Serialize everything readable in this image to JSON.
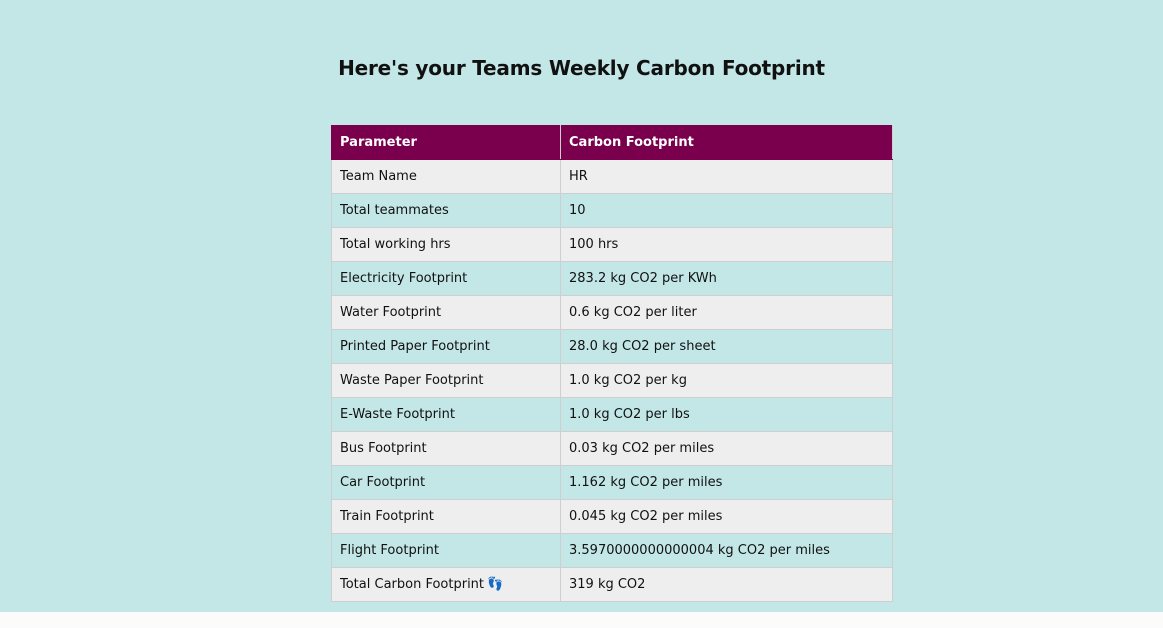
{
  "page": {
    "title": "Here's your Teams Weekly Carbon Footprint"
  },
  "table": {
    "headers": [
      "Parameter",
      "Carbon Footprint"
    ],
    "rows": [
      {
        "parameter": "Team Name",
        "value": "HR"
      },
      {
        "parameter": "Total teammates",
        "value": "10"
      },
      {
        "parameter": "Total working hrs",
        "value": "100 hrs"
      },
      {
        "parameter": "Electricity Footprint",
        "value": "283.2 kg CO2 per KWh"
      },
      {
        "parameter": "Water Footprint",
        "value": "0.6 kg CO2 per liter"
      },
      {
        "parameter": "Printed Paper Footprint",
        "value": "28.0 kg CO2 per sheet"
      },
      {
        "parameter": "Waste Paper Footprint",
        "value": "1.0 kg CO2 per kg"
      },
      {
        "parameter": "E-Waste Footprint",
        "value": "1.0 kg CO2 per lbs"
      },
      {
        "parameter": "Bus Footprint",
        "value": "0.03 kg CO2 per miles"
      },
      {
        "parameter": "Car Footprint",
        "value": "1.162 kg CO2 per miles"
      },
      {
        "parameter": "Train Footprint",
        "value": "0.045 kg CO2 per miles"
      },
      {
        "parameter": "Flight Footprint",
        "value": "3.5970000000000004 kg CO2 per miles"
      },
      {
        "parameter": "Total Carbon Footprint",
        "value": "319 kg CO2",
        "icon": "footprints-icon",
        "icon_glyph": "👣"
      }
    ]
  },
  "colors": {
    "background": "#c3e7e7",
    "header_bg": "#7a004e",
    "row_alt": "#efeeee"
  }
}
